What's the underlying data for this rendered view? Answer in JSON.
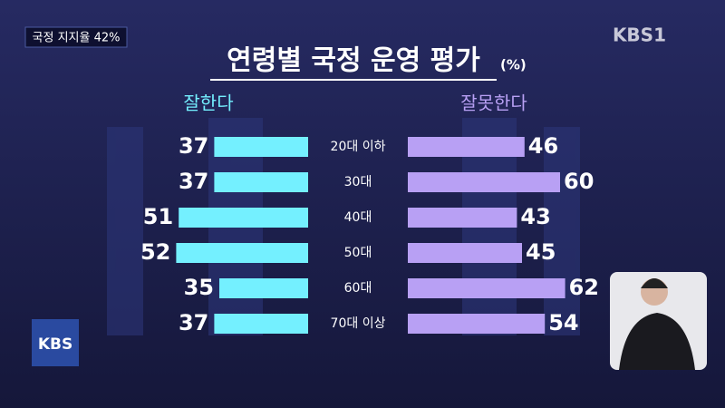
{
  "overlay": {
    "badge": "국정 지지율 42%",
    "channel_logo": "KBS1",
    "corner_logo": "KBS"
  },
  "chart_data": {
    "type": "butterfly",
    "title": "연령별 국정 운영 평가",
    "unit": "(%)",
    "categories": [
      "20대 이하",
      "30대",
      "40대",
      "50대",
      "60대",
      "70대 이상"
    ],
    "series": [
      {
        "name": "잘한다",
        "color": "#74f0ff",
        "values": [
          37,
          37,
          51,
          52,
          35,
          37
        ]
      },
      {
        "name": "잘못한다",
        "color": "#b8a0f4",
        "values": [
          46,
          60,
          43,
          45,
          62,
          54
        ]
      }
    ]
  }
}
